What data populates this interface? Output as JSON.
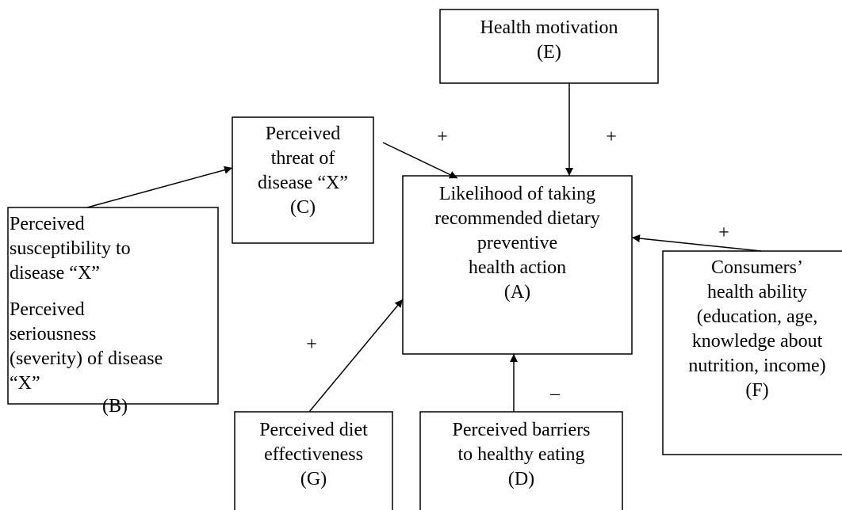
{
  "nodes": [
    {
      "lines": [
        "Health motivation",
        "(E)"
      ]
    },
    {
      "lines": [
        "Perceived",
        "threat of",
        "disease “X”",
        "(C)"
      ]
    },
    {
      "lines": [
        "Likelihood of taking",
        "recommended dietary",
        "preventive",
        "health action",
        "(A)"
      ]
    },
    {
      "lines": [
        "Perceived",
        "susceptibility to",
        "disease “X”",
        "Perceived",
        "seriousness",
        "(severity) of disease",
        "“X”",
        "(B)"
      ]
    },
    {
      "lines": [
        "Consumers’",
        "health ability",
        "(education, age,",
        "knowledge about",
        "nutrition, income)",
        "(F)"
      ]
    },
    {
      "lines": [
        "Perceived diet",
        "effectiveness",
        "(G)"
      ]
    },
    {
      "lines": [
        "Perceived barriers",
        "to healthy eating",
        "(D)"
      ]
    }
  ],
  "signs": [
    "+",
    "+",
    "+",
    "+",
    "–"
  ]
}
